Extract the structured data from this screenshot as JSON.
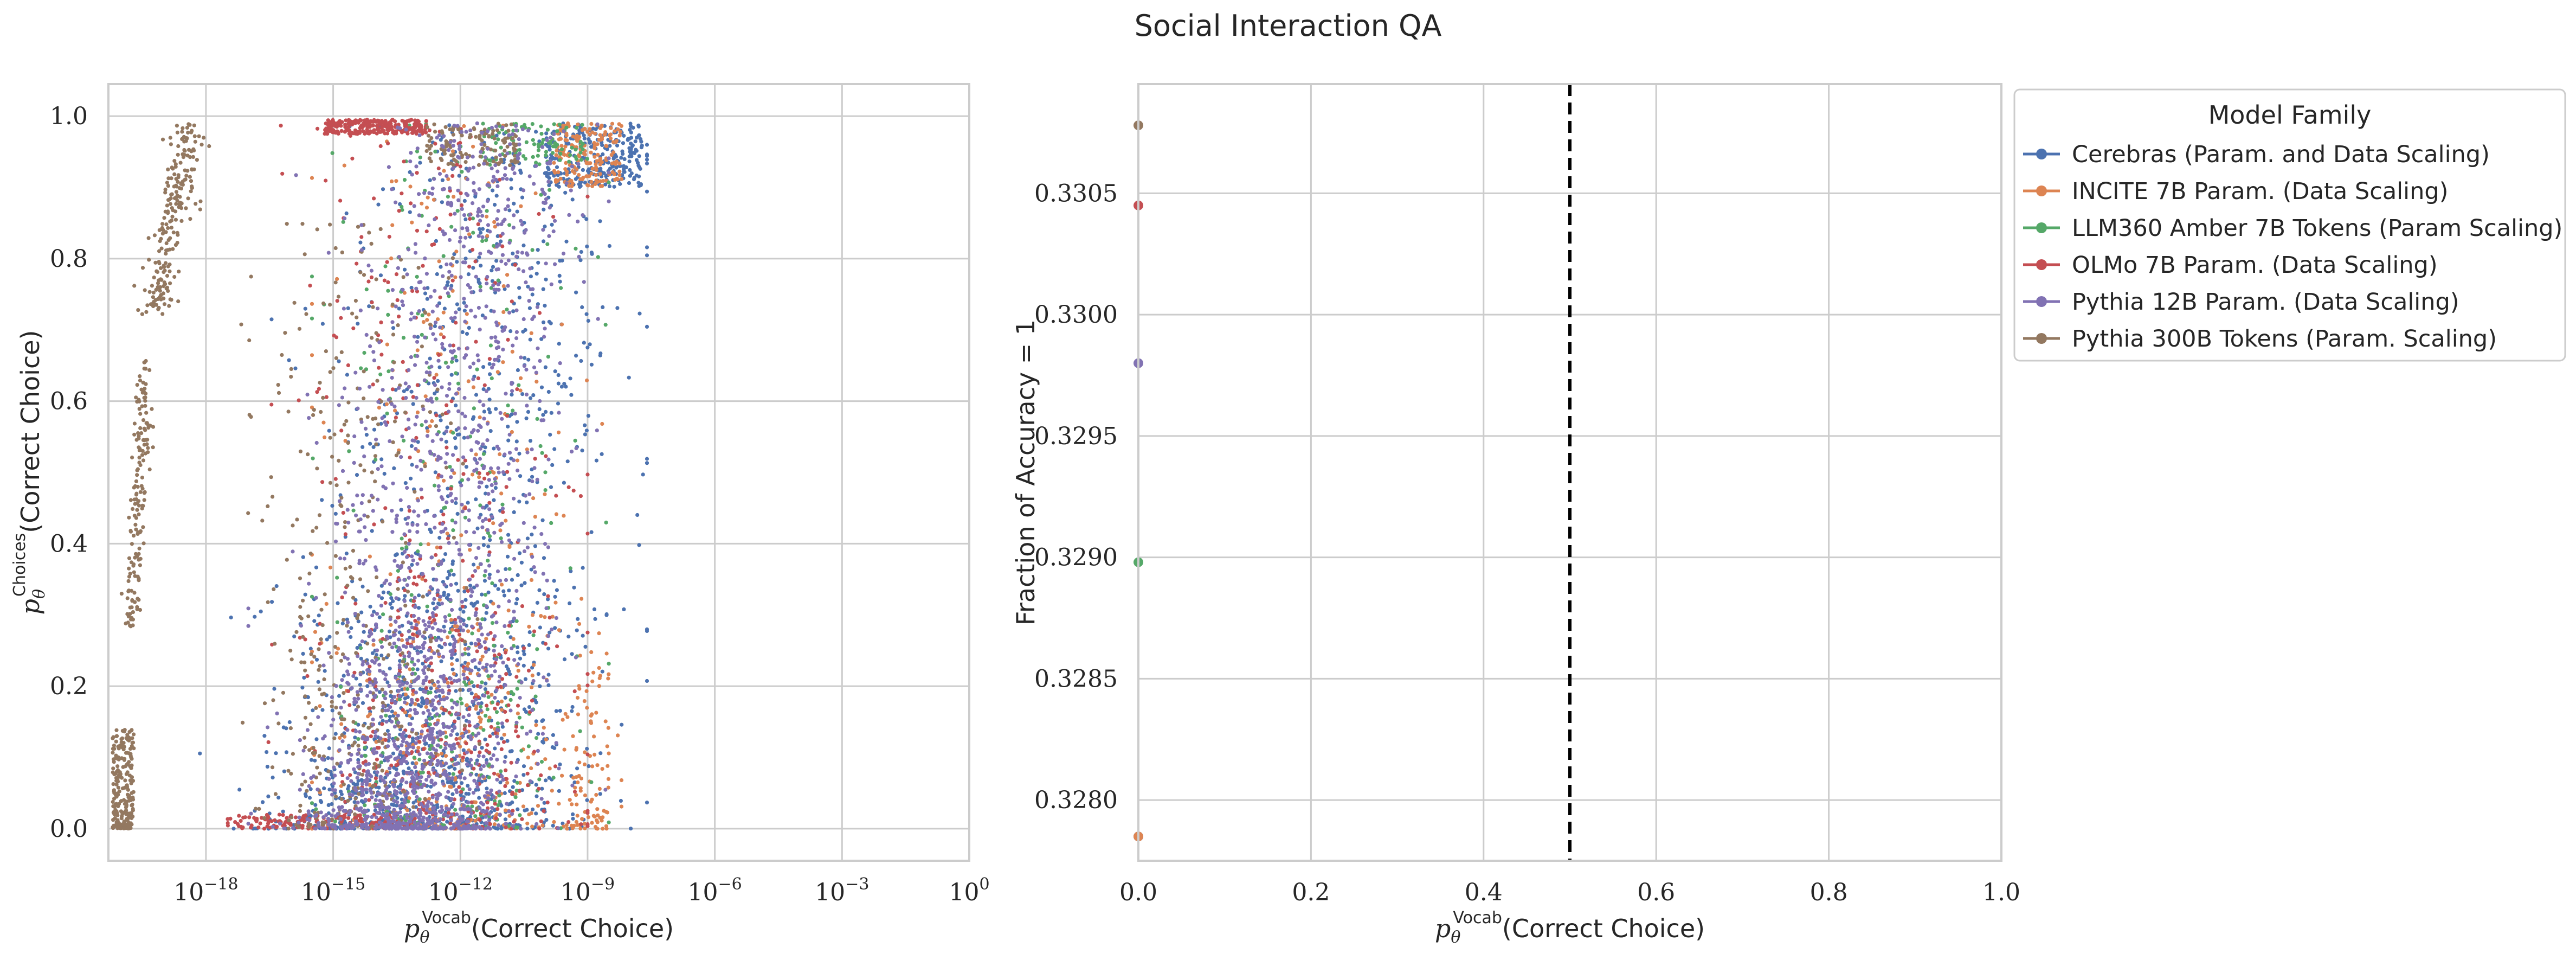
{
  "figure_title": "Social Interaction QA",
  "colors": {
    "Cerebras": "#4c72b0",
    "INCITE": "#dd8452",
    "Amber": "#55a868",
    "OLMo": "#c44e52",
    "Pythia12B": "#8172b3",
    "Pythia300B": "#937860"
  },
  "chart_data": [
    {
      "type": "scatter",
      "title": "",
      "xlabel_main": "p",
      "xlabel_sub": "θ",
      "xlabel_sup": "Vocab",
      "xlabel_tail": "(Correct Choice)",
      "ylabel_main": "p",
      "ylabel_sub": "θ",
      "ylabel_sup": "Choices",
      "ylabel_tail": "(Correct Choice)",
      "xscale": "log",
      "xlim_log10": [
        -20.3,
        0
      ],
      "ylim": [
        -0.045,
        1.045
      ],
      "x_ticks": [
        "10^-18",
        "10^-15",
        "10^-12",
        "10^-9",
        "10^-6",
        "10^-3",
        "10^0"
      ],
      "y_ticks": [
        "0.0",
        "0.2",
        "0.4",
        "0.6",
        "0.8",
        "1.0"
      ],
      "grid": true,
      "point_clouds": [
        {
          "family": "Cerebras",
          "log10_x_range": [
            -18.2,
            -7.6
          ],
          "y_range": [
            0.0,
            0.99
          ],
          "note": "dense cloud, widest spread"
        },
        {
          "family": "INCITE",
          "log10_x_range": [
            -15.5,
            -8.2
          ],
          "y_range": [
            0.0,
            0.99
          ],
          "note": "dense near top-right around 1e-9 to 1e-8"
        },
        {
          "family": "Amber",
          "log10_x_range": [
            -15.5,
            -8.5
          ],
          "y_range": [
            0.0,
            0.99
          ],
          "note": "mixed within main cloud"
        },
        {
          "family": "OLMo",
          "log10_x_range": [
            -17.5,
            -9.0
          ],
          "y_range": [
            0.0,
            0.995
          ],
          "note": "cluster near y=1 at 1e-15 to 1e-13; tail near y=0 from 1e-18"
        },
        {
          "family": "Pythia12B",
          "log10_x_range": [
            -17.0,
            -8.5
          ],
          "y_range": [
            0.0,
            0.99
          ],
          "note": "dense central cloud around 1e-12"
        },
        {
          "family": "Pythia300B",
          "log10_x_range": [
            -20.3,
            -11.0
          ],
          "y_range": [
            0.0,
            0.99
          ],
          "note": "separate clusters near 1e-20 and 1e-19 plus central band"
        }
      ]
    },
    {
      "type": "scatter",
      "title": "",
      "xlabel_main": "p",
      "xlabel_sub": "θ",
      "xlabel_sup": "Vocab",
      "xlabel_tail": "(Correct Choice)",
      "ylabel": "Fraction of Accuracy = 1",
      "xlim": [
        0.0,
        1.0
      ],
      "ylim": [
        0.32775,
        0.33095
      ],
      "x_ticks": [
        "0.0",
        "0.2",
        "0.4",
        "0.6",
        "0.8",
        "1.0"
      ],
      "y_ticks": [
        "0.3280",
        "0.3285",
        "0.3290",
        "0.3295",
        "0.3300",
        "0.3305"
      ],
      "vline_x": 0.5,
      "grid": true,
      "series": [
        {
          "name": "Cerebras (Param. and Data Scaling)",
          "family": "Cerebras",
          "x": 0.0,
          "y": 0.32785
        },
        {
          "name": "INCITE 7B Param. (Data Scaling)",
          "family": "INCITE",
          "x": 0.0,
          "y": 0.32785
        },
        {
          "name": "LLM360 Amber 7B Tokens (Param Scaling)",
          "family": "Amber",
          "x": 0.0,
          "y": 0.32898
        },
        {
          "name": "OLMo 7B Param. (Data Scaling)",
          "family": "OLMo",
          "x": 0.0,
          "y": 0.33045
        },
        {
          "name": "Pythia 12B Param. (Data Scaling)",
          "family": "Pythia12B",
          "x": 0.0,
          "y": 0.3298
        },
        {
          "name": "Pythia 300B Tokens (Param. Scaling)",
          "family": "Pythia300B",
          "x": 0.0,
          "y": 0.33078
        }
      ],
      "legend": {
        "title": "Model Family",
        "placement": "outside-right-top"
      }
    }
  ]
}
